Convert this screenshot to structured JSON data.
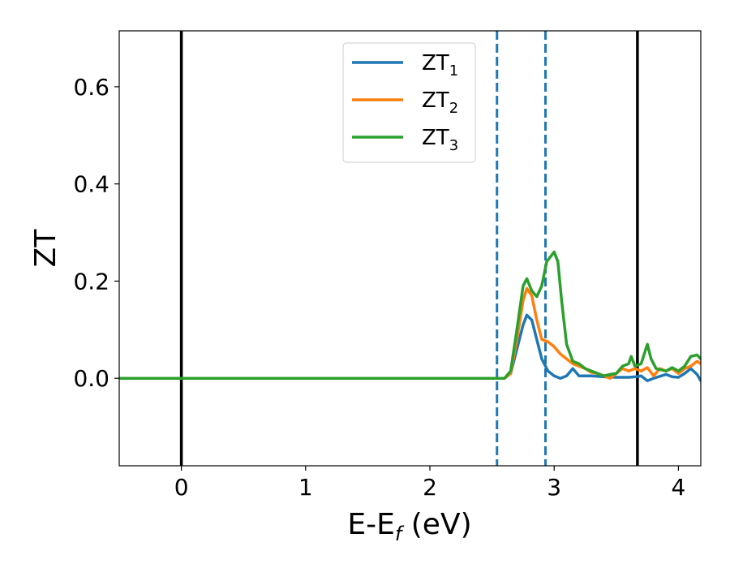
{
  "chart_data": {
    "type": "line",
    "title": "",
    "xlabel": {
      "main": "E-E",
      "sub": "f",
      "suffix": " (eV)"
    },
    "ylabel": "ZT",
    "xlim": [
      -0.5,
      4.18
    ],
    "ylim": [
      -0.18,
      0.715
    ],
    "xticks": [
      0,
      1,
      2,
      3,
      4
    ],
    "xtick_labels": [
      "0",
      "1",
      "2",
      "3",
      "4"
    ],
    "yticks": [
      0.0,
      0.2,
      0.4,
      0.6
    ],
    "ytick_labels": [
      "0.0",
      "0.2",
      "0.4",
      "0.6"
    ],
    "grid": false,
    "legend_position": "top-center",
    "vlines": [
      {
        "x": 0.0,
        "style": "solid",
        "color": "#000000"
      },
      {
        "x": 3.67,
        "style": "solid",
        "color": "#000000"
      },
      {
        "x": 2.54,
        "style": "dashed",
        "color": "#1f77b4"
      },
      {
        "x": 2.93,
        "style": "dashed",
        "color": "#1f77b4"
      }
    ],
    "series": [
      {
        "name": "ZT",
        "sub": "1",
        "color": "#1f77b4",
        "points": [
          [
            -0.5,
            0
          ],
          [
            2.6,
            0
          ],
          [
            2.65,
            0.01
          ],
          [
            2.7,
            0.06
          ],
          [
            2.75,
            0.11
          ],
          [
            2.78,
            0.13
          ],
          [
            2.82,
            0.12
          ],
          [
            2.86,
            0.08
          ],
          [
            2.9,
            0.04
          ],
          [
            2.95,
            0.015
          ],
          [
            3.0,
            0.005
          ],
          [
            3.05,
            0.0
          ],
          [
            3.1,
            0.005
          ],
          [
            3.15,
            0.02
          ],
          [
            3.2,
            0.005
          ],
          [
            3.3,
            0.005
          ],
          [
            3.4,
            0.003
          ],
          [
            3.5,
            0.002
          ],
          [
            3.6,
            0.002
          ],
          [
            3.65,
            0.003
          ],
          [
            3.7,
            0.005
          ],
          [
            3.75,
            -0.005
          ],
          [
            3.8,
            0.0
          ],
          [
            3.9,
            0.008
          ],
          [
            3.95,
            0.003
          ],
          [
            4.0,
            0.002
          ],
          [
            4.05,
            0.01
          ],
          [
            4.1,
            0.02
          ],
          [
            4.15,
            0.008
          ],
          [
            4.18,
            -0.005
          ]
        ]
      },
      {
        "name": "ZT",
        "sub": "2",
        "color": "#ff7f0e",
        "points": [
          [
            -0.5,
            0
          ],
          [
            2.6,
            0
          ],
          [
            2.65,
            0.01
          ],
          [
            2.7,
            0.08
          ],
          [
            2.75,
            0.16
          ],
          [
            2.78,
            0.185
          ],
          [
            2.82,
            0.17
          ],
          [
            2.86,
            0.12
          ],
          [
            2.9,
            0.08
          ],
          [
            2.95,
            0.075
          ],
          [
            3.0,
            0.065
          ],
          [
            3.05,
            0.05
          ],
          [
            3.1,
            0.04
          ],
          [
            3.15,
            0.03
          ],
          [
            3.2,
            0.025
          ],
          [
            3.25,
            0.02
          ],
          [
            3.3,
            0.012
          ],
          [
            3.35,
            0.01
          ],
          [
            3.4,
            0.005
          ],
          [
            3.45,
            0.0
          ],
          [
            3.5,
            0.01
          ],
          [
            3.55,
            0.02
          ],
          [
            3.6,
            0.015
          ],
          [
            3.65,
            0.02
          ],
          [
            3.7,
            0.015
          ],
          [
            3.75,
            0.022
          ],
          [
            3.8,
            0.005
          ],
          [
            3.85,
            0.02
          ],
          [
            3.9,
            0.015
          ],
          [
            3.95,
            0.02
          ],
          [
            4.0,
            0.01
          ],
          [
            4.05,
            0.02
          ],
          [
            4.1,
            0.025
          ],
          [
            4.15,
            0.035
          ],
          [
            4.18,
            0.03
          ]
        ]
      },
      {
        "name": "ZT",
        "sub": "3",
        "color": "#2ca02c",
        "points": [
          [
            -0.5,
            0
          ],
          [
            2.6,
            0
          ],
          [
            2.65,
            0.015
          ],
          [
            2.7,
            0.1
          ],
          [
            2.75,
            0.19
          ],
          [
            2.78,
            0.205
          ],
          [
            2.82,
            0.18
          ],
          [
            2.86,
            0.168
          ],
          [
            2.9,
            0.19
          ],
          [
            2.94,
            0.24
          ],
          [
            2.97,
            0.25
          ],
          [
            3.0,
            0.26
          ],
          [
            3.03,
            0.24
          ],
          [
            3.06,
            0.16
          ],
          [
            3.1,
            0.07
          ],
          [
            3.15,
            0.035
          ],
          [
            3.2,
            0.03
          ],
          [
            3.25,
            0.02
          ],
          [
            3.3,
            0.015
          ],
          [
            3.35,
            0.01
          ],
          [
            3.4,
            0.005
          ],
          [
            3.45,
            0.008
          ],
          [
            3.5,
            0.01
          ],
          [
            3.55,
            0.025
          ],
          [
            3.6,
            0.03
          ],
          [
            3.62,
            0.045
          ],
          [
            3.65,
            0.025
          ],
          [
            3.7,
            0.03
          ],
          [
            3.75,
            0.07
          ],
          [
            3.78,
            0.04
          ],
          [
            3.82,
            0.02
          ],
          [
            3.85,
            0.018
          ],
          [
            3.9,
            0.015
          ],
          [
            3.95,
            0.022
          ],
          [
            4.0,
            0.015
          ],
          [
            4.05,
            0.025
          ],
          [
            4.1,
            0.045
          ],
          [
            4.15,
            0.048
          ],
          [
            4.18,
            0.04
          ]
        ]
      }
    ]
  }
}
